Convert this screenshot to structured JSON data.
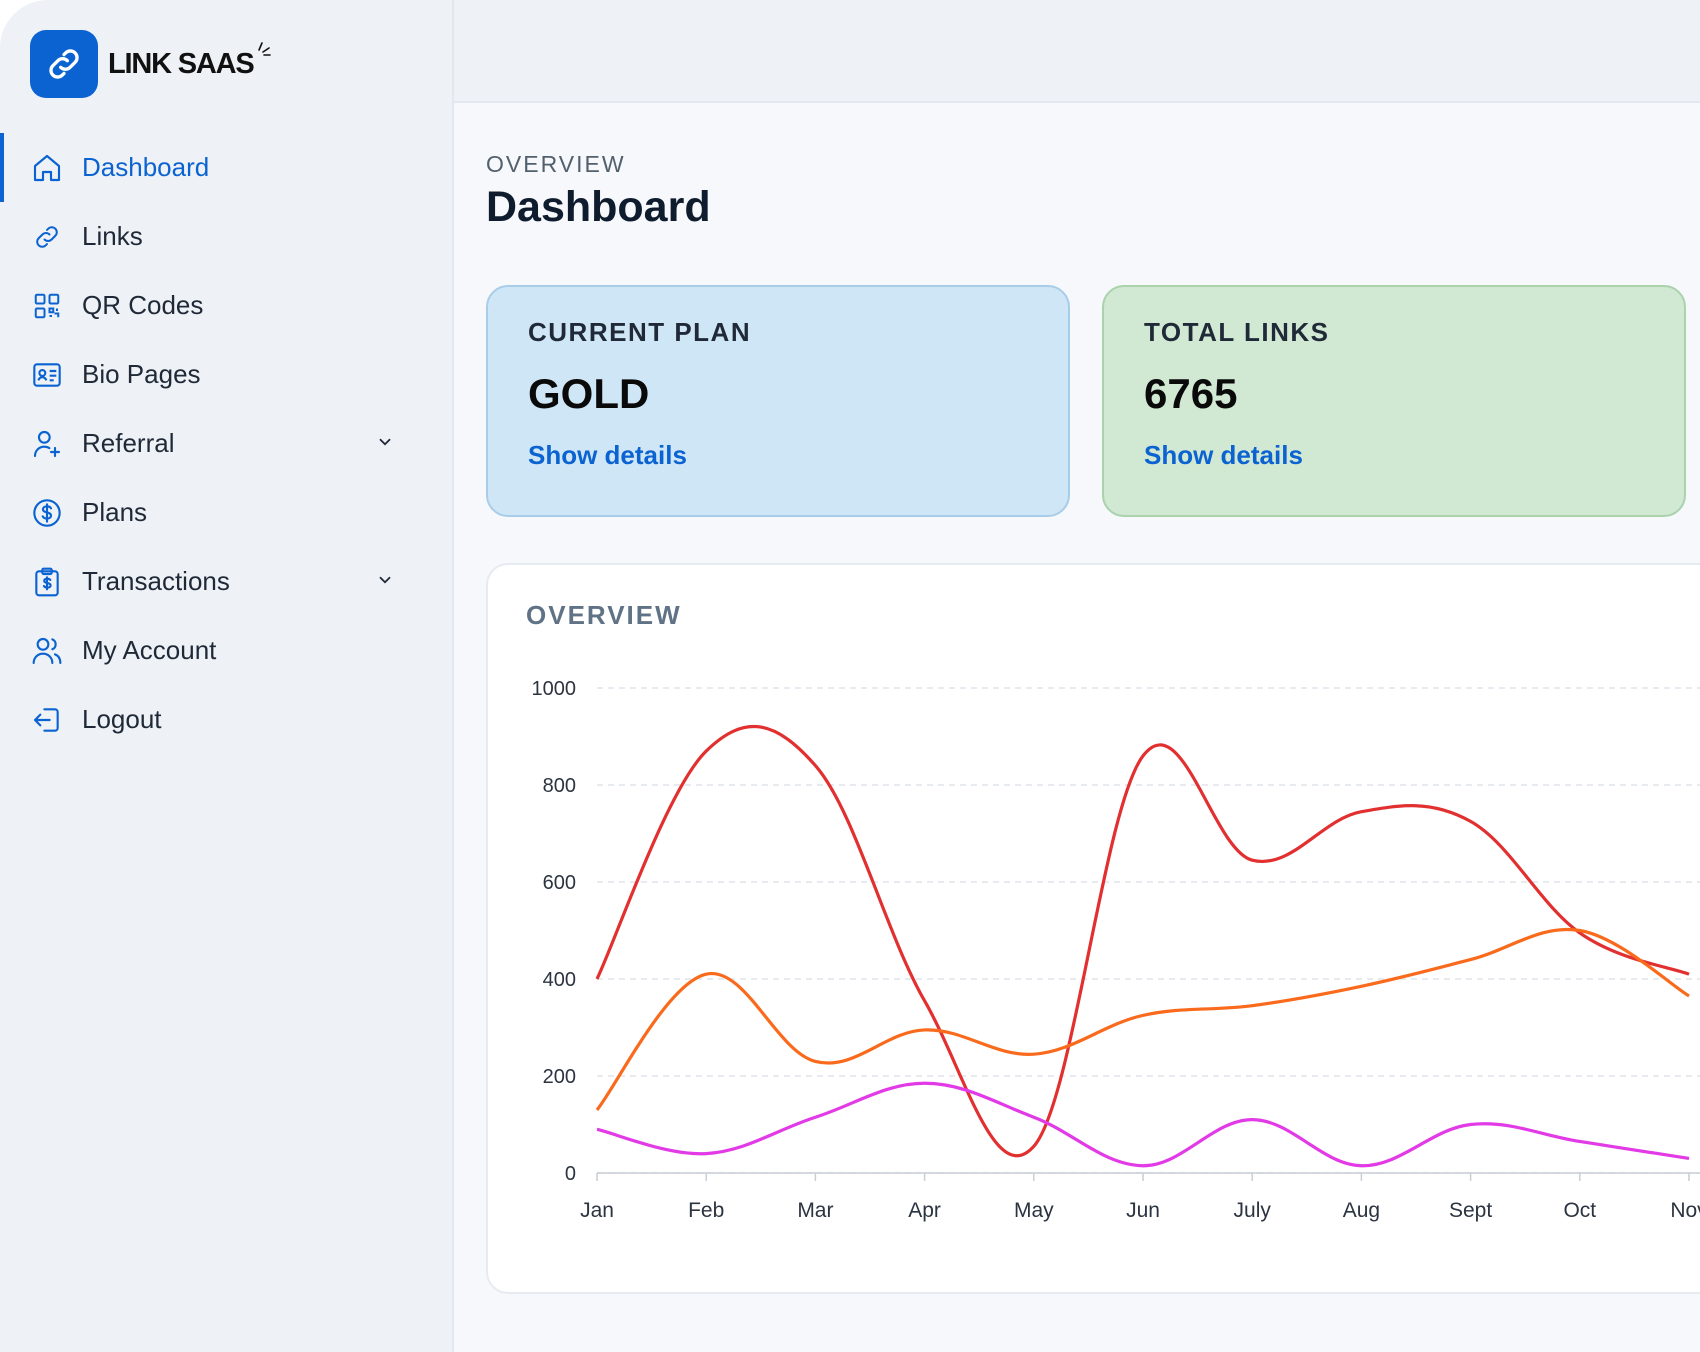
{
  "brand": {
    "name": "LINK SAAS"
  },
  "sidebar": {
    "items": [
      {
        "label": "Dashboard",
        "icon": "home-icon",
        "active": true
      },
      {
        "label": "Links",
        "icon": "link-icon"
      },
      {
        "label": "QR Codes",
        "icon": "qr-code-icon"
      },
      {
        "label": "Bio Pages",
        "icon": "id-card-icon"
      },
      {
        "label": "Referral",
        "icon": "user-plus-icon",
        "expandable": true
      },
      {
        "label": "Plans",
        "icon": "dollar-circle-icon"
      },
      {
        "label": "Transactions",
        "icon": "receipt-dollar-icon",
        "expandable": true
      },
      {
        "label": "My Account",
        "icon": "users-icon"
      },
      {
        "label": "Logout",
        "icon": "logout-icon"
      }
    ]
  },
  "header": {
    "section": "OVERVIEW",
    "title": "Dashboard"
  },
  "cards": {
    "plan": {
      "caption": "CURRENT PLAN",
      "value": "GOLD",
      "link": "Show details"
    },
    "links": {
      "caption": "TOTAL LINKS",
      "value": "6765",
      "link": "Show details"
    }
  },
  "colors": {
    "accent": "#0b63d1",
    "red": "#e1302f",
    "orange": "#fa6a1c",
    "magenta": "#e23ae6"
  },
  "chart": {
    "title": "OVERVIEW"
  },
  "chart_data": {
    "type": "line",
    "categories": [
      "Jan",
      "Feb",
      "Mar",
      "Apr",
      "May",
      "Jun",
      "July",
      "Aug",
      "Sept",
      "Oct",
      "Nov"
    ],
    "ylim": [
      0,
      1000
    ],
    "yticks": [
      0,
      200,
      400,
      600,
      800,
      1000
    ],
    "grid": true,
    "series": [
      {
        "color": "#e1302f",
        "values": [
          400,
          870,
          840,
          355,
          55,
          860,
          645,
          745,
          725,
          495,
          410
        ]
      },
      {
        "color": "#fa6a1c",
        "values": [
          130,
          410,
          230,
          295,
          245,
          325,
          345,
          385,
          440,
          500,
          365
        ]
      },
      {
        "color": "#e23ae6",
        "values": [
          90,
          40,
          115,
          185,
          115,
          15,
          110,
          15,
          100,
          65,
          30
        ]
      }
    ]
  }
}
